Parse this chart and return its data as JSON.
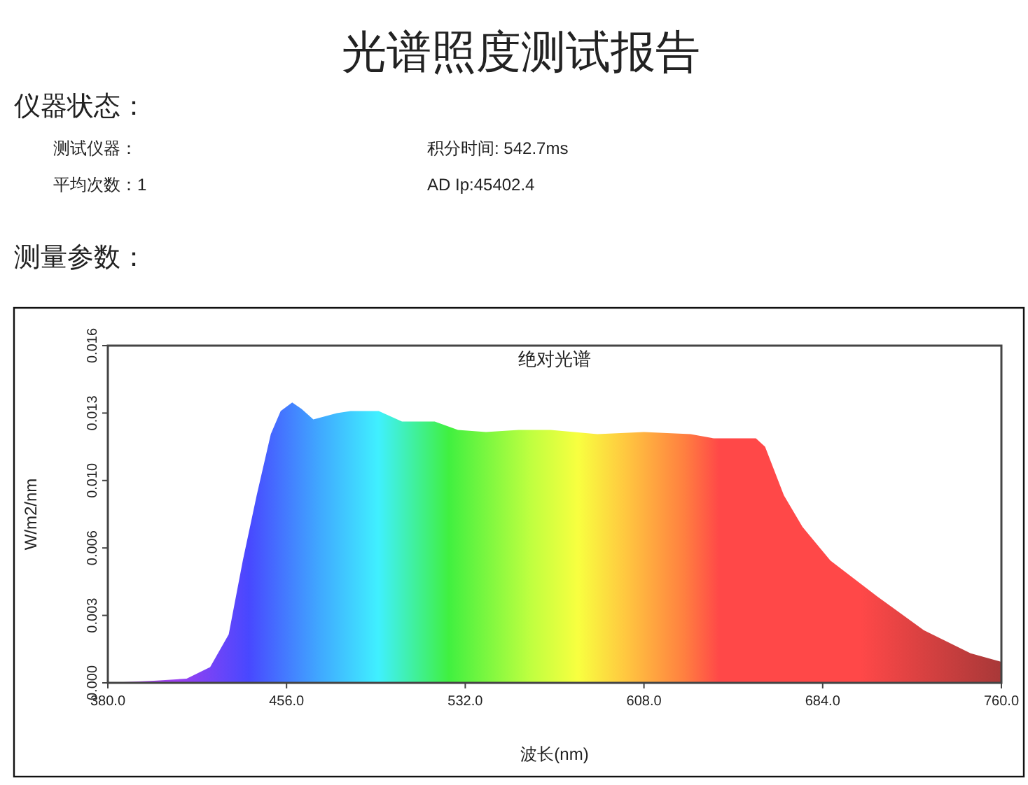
{
  "chart_data": {
    "type": "area",
    "title": "光谱照度测试报告",
    "subtitle": "绝对光谱",
    "xlabel": "波长(nm)",
    "ylabel": "W/m2/nm",
    "annotations": [
      "仪器状态：",
      "测试仪器：",
      "积分时间: 542.7ms",
      "平均次数：1",
      "AD Ip:45402.4",
      "测量参数："
    ],
    "x": [
      380,
      399.6,
      413.5,
      423.5,
      431.4,
      437.4,
      443.3,
      449.3,
      453.5,
      458.4,
      462.4,
      467.4,
      477.4,
      483.3,
      495.2,
      505.1,
      519,
      528.9,
      540.8,
      554.7,
      568.3,
      588.2,
      608,
      627.8,
      637.7,
      649.6,
      655.6,
      659.5,
      667.5,
      675.4,
      687.3,
      707.2,
      727,
      746.9,
      760
    ],
    "values": [
      0,
      0.0001,
      0.0002,
      0.00075,
      0.0023,
      0.0058,
      0.0089,
      0.0118,
      0.0129,
      0.0133,
      0.013,
      0.0125,
      0.0128,
      0.0129,
      0.0129,
      0.0124,
      0.0124,
      0.012,
      0.0119,
      0.012,
      0.012,
      0.0118,
      0.0119,
      0.0118,
      0.0116,
      0.0116,
      0.0116,
      0.0112,
      0.0089,
      0.0074,
      0.0058,
      0.0041,
      0.0025,
      0.0014,
      0.001
    ],
    "xlim": [
      380,
      760
    ],
    "xticks": [
      {
        "value": 380,
        "label": "380.0"
      },
      {
        "value": 456,
        "label": "456.0"
      },
      {
        "value": 532,
        "label": "532.0"
      },
      {
        "value": 608,
        "label": "608.0"
      },
      {
        "value": 684,
        "label": "684.0"
      },
      {
        "value": 760,
        "label": "760.0"
      }
    ],
    "ylim": [
      0,
      0.016
    ],
    "yticks": [
      {
        "value": 0,
        "label": "0.000"
      },
      {
        "value": 0.0032,
        "label": "0.003"
      },
      {
        "value": 0.0064,
        "label": "0.006"
      },
      {
        "value": 0.0096,
        "label": "0.010"
      },
      {
        "value": 0.0128,
        "label": "0.013"
      },
      {
        "value": 0.016,
        "label": "0.016"
      }
    ]
  }
}
